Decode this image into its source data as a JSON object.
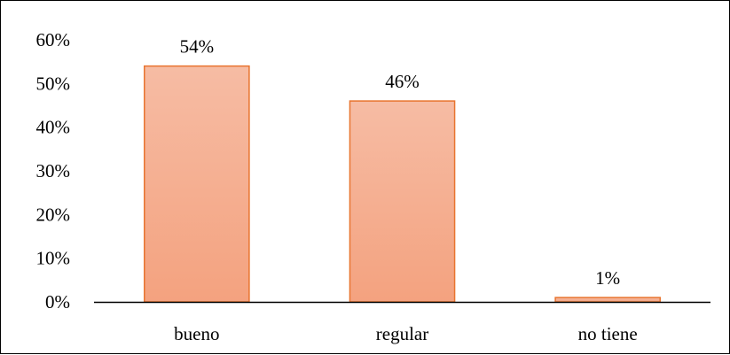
{
  "chart_data": {
    "type": "bar",
    "categories": [
      "bueno",
      "regular",
      "no tiene"
    ],
    "values": [
      54,
      46,
      1
    ],
    "data_labels": [
      "54%",
      "46%",
      "1%"
    ],
    "ylim": [
      0,
      60
    ],
    "y_ticks": [
      0,
      10,
      20,
      30,
      40,
      50,
      60
    ],
    "y_tick_labels": [
      "0%",
      "10%",
      "20%",
      "30%",
      "40%",
      "50%",
      "60%"
    ],
    "grid": false,
    "legend": "none",
    "colors": {
      "bar_fill_top": "#f6bca4",
      "bar_fill_bottom": "#f4a27f",
      "bar_stroke": "#e8742f",
      "axis": "#000000",
      "text": "#000000"
    }
  }
}
